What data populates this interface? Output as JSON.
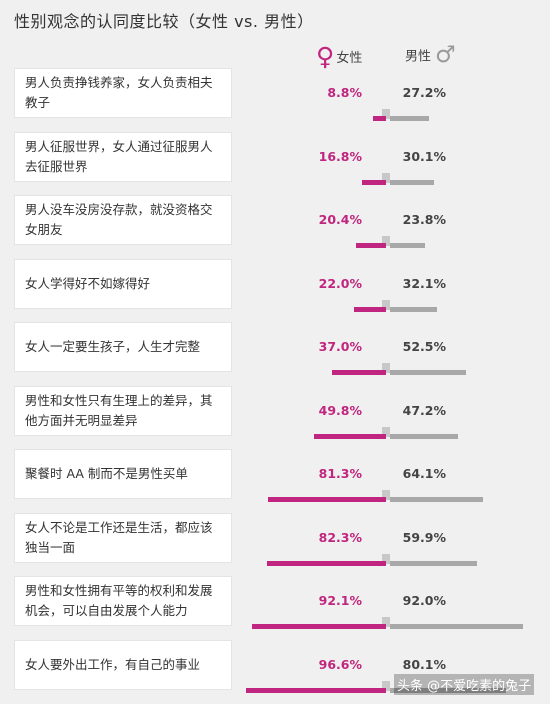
{
  "title": "性别观念的认同度比较（女性 vs. 男性）",
  "legend": {
    "female_label": "女性",
    "male_label": "男性",
    "female_symbol": "♀",
    "male_symbol": "♂"
  },
  "colors": {
    "female": "#c0267f",
    "male": "#a8a8a8"
  },
  "watermark": "头条 @不爱吃素的兔子",
  "chart_data": {
    "type": "bar",
    "unit": "%",
    "categories": [
      "男人负责挣钱养家，女人负责相夫教子",
      "男人征服世界，女人通过征服男人去征服世界",
      "男人没车没房没存款，就没资格交女朋友",
      "女人学得好不如嫁得好",
      "女人一定要生孩子，人生才完整",
      "男性和女性只有生理上的差异，其他方面并无明显差异",
      "聚餐时 AA 制而不是男性买单",
      "女人不论是工作还是生活，都应该独当一面",
      "男性和女性拥有平等的权利和发展机会，可以自由发展个人能力",
      "女人要外出工作，有自己的事业"
    ],
    "series": [
      {
        "name": "女性",
        "values": [
          8.8,
          16.8,
          20.4,
          22.0,
          37.0,
          49.8,
          81.3,
          82.3,
          92.1,
          96.6
        ],
        "labels": [
          "8.8%",
          "16.8%",
          "20.4%",
          "22.0%",
          "37.0%",
          "49.8%",
          "81.3%",
          "82.3%",
          "92.1%",
          "96.6%"
        ]
      },
      {
        "name": "男性",
        "values": [
          27.2,
          30.1,
          23.8,
          32.1,
          52.5,
          47.2,
          64.1,
          59.9,
          92.0,
          80.1
        ],
        "labels": [
          "27.2%",
          "30.1%",
          "23.8%",
          "32.1%",
          "52.5%",
          "47.2%",
          "64.1%",
          "59.9%",
          "92.0%",
          "80.1%"
        ]
      }
    ],
    "layout": "butterfly",
    "ylim": [
      0,
      100
    ]
  }
}
